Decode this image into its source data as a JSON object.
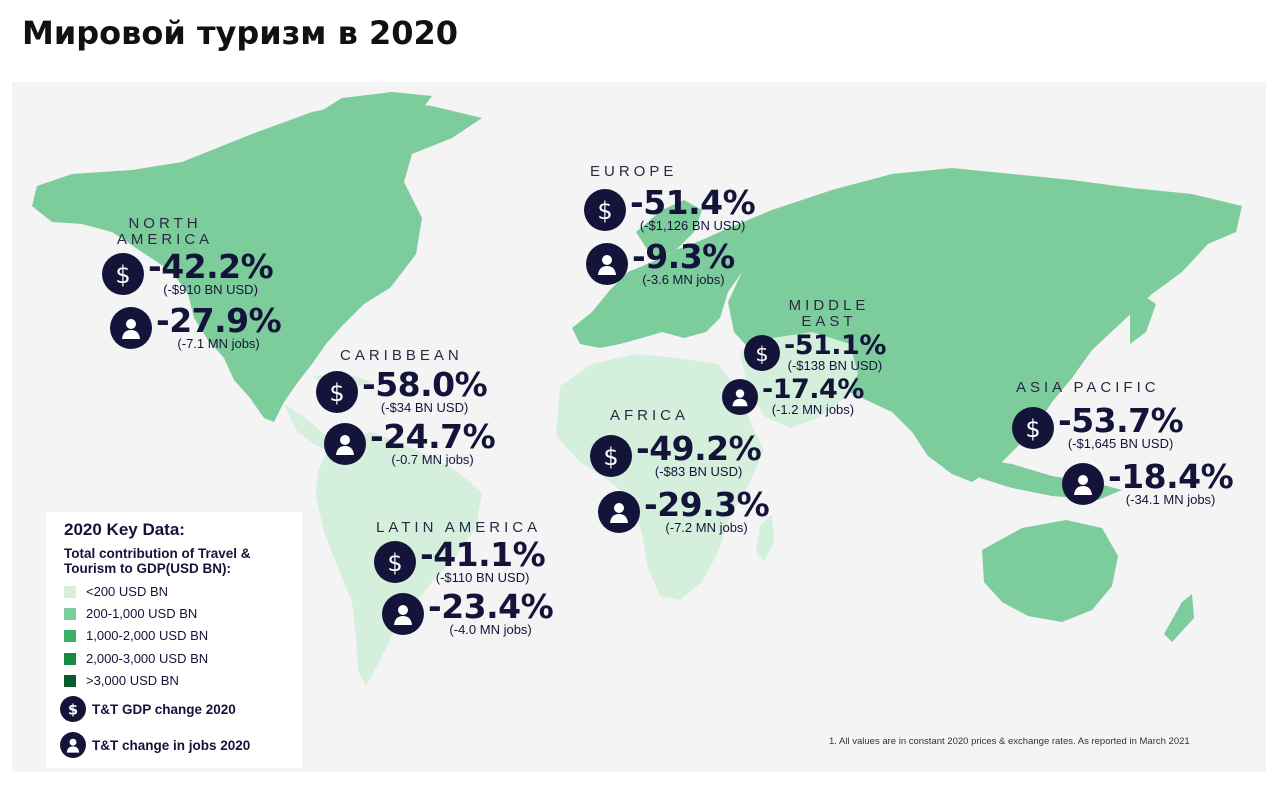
{
  "title": "Мировой туризм в 2020",
  "regions": {
    "north_america": {
      "name_line1": "NORTH",
      "name_line2": "AMERICA",
      "gdp_pct": "-42.2%",
      "gdp_abs": "(-$910 BN USD)",
      "jobs_pct": "-27.9%",
      "jobs_abs": "(-7.1 MN jobs)"
    },
    "caribbean": {
      "name": "CARIBBEAN",
      "gdp_pct": "-58.0%",
      "gdp_abs": "(-$34 BN USD)",
      "jobs_pct": "-24.7%",
      "jobs_abs": "(-0.7 MN jobs)"
    },
    "latin_america": {
      "name": "LATIN AMERICA",
      "gdp_pct": "-41.1%",
      "gdp_abs": "(-$110 BN USD)",
      "jobs_pct": "-23.4%",
      "jobs_abs": "(-4.0 MN jobs)"
    },
    "europe": {
      "name": "EUROPE",
      "gdp_pct": "-51.4%",
      "gdp_abs": "(-$1,126 BN USD)",
      "jobs_pct": "-9.3%",
      "jobs_abs": "(-3.6 MN jobs)"
    },
    "africa": {
      "name": "AFRICA",
      "gdp_pct": "-49.2%",
      "gdp_abs": "(-$83 BN USD)",
      "jobs_pct": "-29.3%",
      "jobs_abs": "(-7.2 MN jobs)"
    },
    "middle_east": {
      "name_line1": "MIDDLE",
      "name_line2": "EAST",
      "gdp_pct": "-51.1%",
      "gdp_abs": "(-$138 BN USD)",
      "jobs_pct": "-17.4%",
      "jobs_abs": "(-1.2 MN jobs)"
    },
    "asia_pacific": {
      "name": "ASIA PACIFIC",
      "gdp_pct": "-53.7%",
      "gdp_abs": "(-$1,645 BN USD)",
      "jobs_pct": "-18.4%",
      "jobs_abs": "(-34.1 MN jobs)"
    }
  },
  "legend": {
    "title": "2020 Key Data:",
    "subtitle": "Total contribution of Travel & Tourism to GDP(USD BN):",
    "ranges": [
      {
        "label": "<200 USD BN",
        "color": "#d4efdc"
      },
      {
        "label": "200-1,000 USD BN",
        "color": "#7dcc9b"
      },
      {
        "label": "1,000-2,000 USD BN",
        "color": "#3dae6a"
      },
      {
        "label": "2,000-3,000 USD BN",
        "color": "#168a44"
      },
      {
        "label": ">3,000 USD BN",
        "color": "#0b5a2c"
      }
    ],
    "gdp_icon_label": "T&T GDP change 2020",
    "jobs_icon_label": "T&T change in jobs 2020"
  },
  "footnote": "1. All values are in constant 2020 prices & exchange rates. As reported in March 2021",
  "colors": {
    "navy": "#14143a",
    "light_green": "#d4efdc",
    "mid_green": "#7dcc9b",
    "panel_bg": "#f4f4f4"
  },
  "icons": {
    "gdp": "dollar-icon",
    "jobs": "person-icon"
  }
}
